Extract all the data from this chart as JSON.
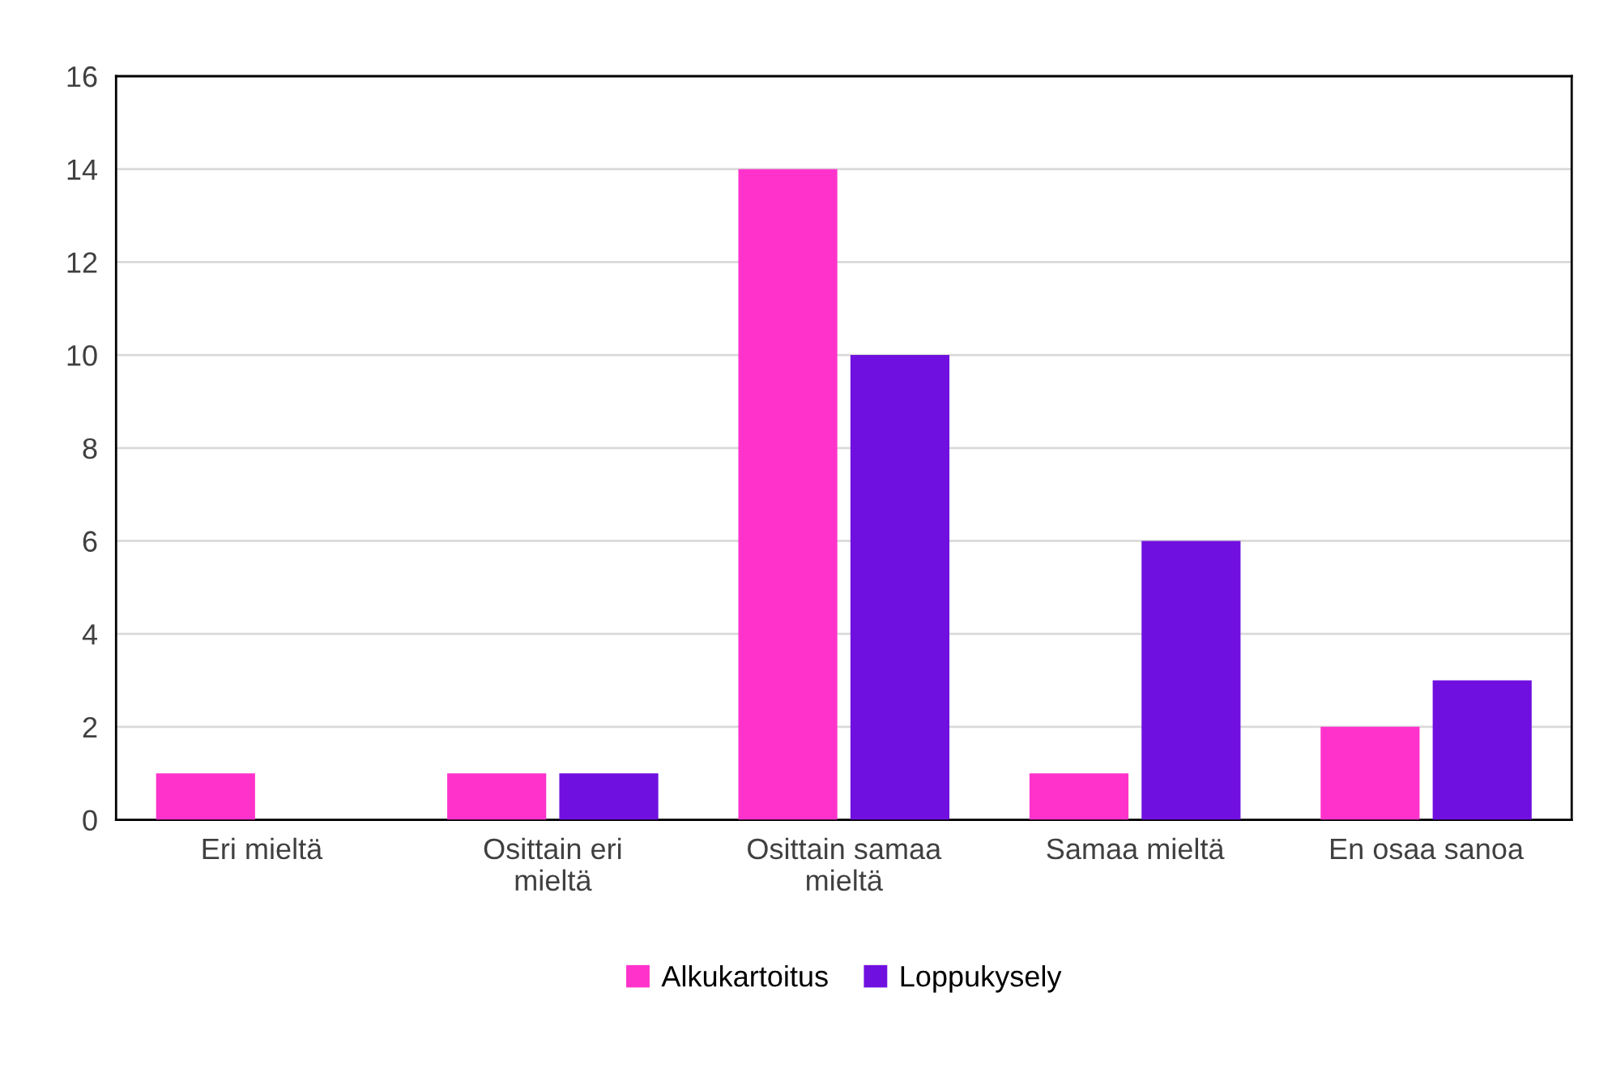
{
  "chart_data": {
    "type": "bar",
    "categories": [
      "Eri mieltä",
      "Osittain eri\nmieltä",
      "Osittain samaa\nmieltä",
      "Samaa mieltä",
      "En osaa sanoa"
    ],
    "series": [
      {
        "name": "Alkukartoitus",
        "color": "#ff33cc",
        "values": [
          1,
          1,
          14,
          1,
          2
        ]
      },
      {
        "name": "Loppukysely",
        "color": "#7010e0",
        "values": [
          0,
          1,
          10,
          6,
          3
        ]
      }
    ],
    "ylim": [
      0,
      16
    ],
    "yticks": [
      0,
      2,
      4,
      6,
      8,
      10,
      12,
      14,
      16
    ],
    "grid": "y",
    "legend": "bottom"
  }
}
